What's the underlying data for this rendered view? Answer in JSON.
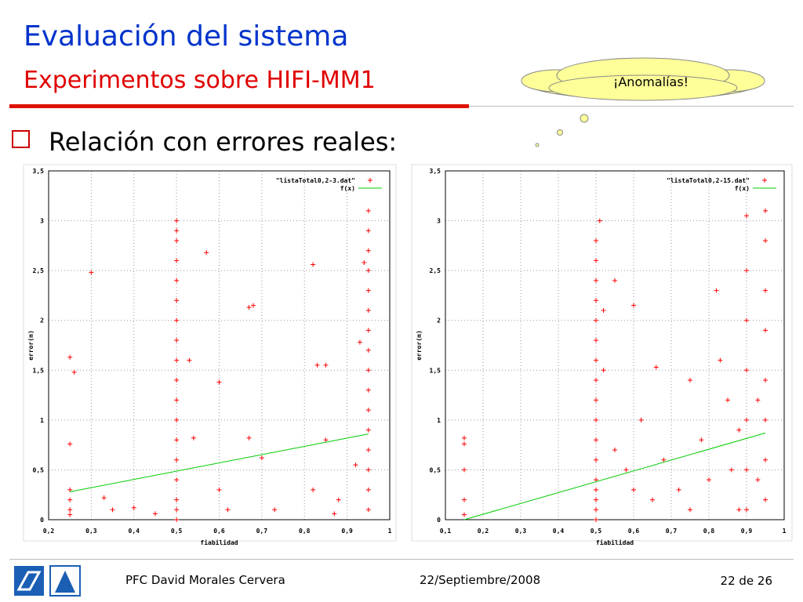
{
  "slide": {
    "title": "Evaluación del sistema",
    "subtitle": "Experimentos sobre HIFI-MM1",
    "callout": "¡Anomalías!",
    "bullet": "Relación con errores reales:",
    "footer": {
      "author": "PFC David Morales Cervera",
      "date": "22/Septiembre/2008",
      "page": "22 de 26"
    }
  },
  "chart_data": [
    {
      "type": "scatter",
      "xlabel": "fiabilidad",
      "ylabel": "error(m)",
      "grid": true,
      "legend": "top-right",
      "xlim": [
        0.2,
        1
      ],
      "ylim": [
        0,
        3.5
      ],
      "xticks": [
        {
          "value": 0.2,
          "label": "0,2"
        },
        {
          "value": 0.3,
          "label": "0,3"
        },
        {
          "value": 0.4,
          "label": "0,4"
        },
        {
          "value": 0.5,
          "label": "0,5"
        },
        {
          "value": 0.6,
          "label": "0,6"
        },
        {
          "value": 0.7,
          "label": "0,7"
        },
        {
          "value": 0.8,
          "label": "0,8"
        },
        {
          "value": 0.9,
          "label": "0,9"
        },
        1
      ],
      "yticks": [
        0,
        {
          "value": 0.5,
          "label": "0,5"
        },
        1,
        {
          "value": 1.5,
          "label": "1,5"
        },
        2,
        {
          "value": 2.5,
          "label": "2,5"
        },
        3,
        {
          "value": 3.5,
          "label": "3,5"
        }
      ],
      "series": [
        {
          "name": "\"listaTotal0,2-3.dat\"",
          "color": "#ff0000",
          "style": "points",
          "x": [
            0.25,
            0.25,
            0.25,
            0.25,
            0.25,
            0.25,
            0.26,
            0.3,
            0.33,
            0.35,
            0.4,
            0.45,
            0.5,
            0.5,
            0.5,
            0.5,
            0.5,
            0.5,
            0.5,
            0.5,
            0.5,
            0.5,
            0.5,
            0.5,
            0.5,
            0.5,
            0.5,
            0.5,
            0.5,
            0.5,
            0.53,
            0.54,
            0.57,
            0.6,
            0.6,
            0.62,
            0.67,
            0.68,
            0.67,
            0.7,
            0.73,
            0.82,
            0.83,
            0.85,
            0.85,
            0.82,
            0.88,
            0.87,
            0.95,
            0.95,
            0.95,
            0.95,
            0.95,
            0.95,
            0.95,
            0.95,
            0.95,
            0.95,
            0.95,
            0.95,
            0.95,
            0.95,
            0.95,
            0.95,
            0.93,
            0.92,
            0.94
          ],
          "values": [
            1.63,
            0.76,
            0.3,
            0.2,
            0.1,
            0.05,
            1.48,
            2.48,
            0.22,
            0.1,
            0.12,
            0.06,
            3.0,
            2.9,
            2.8,
            2.6,
            2.4,
            2.2,
            2.0,
            1.8,
            1.6,
            1.4,
            1.2,
            1.0,
            0.8,
            0.6,
            0.4,
            0.2,
            0.1,
            0.0,
            1.6,
            0.82,
            2.68,
            1.38,
            0.3,
            0.1,
            2.13,
            2.15,
            0.82,
            0.62,
            0.1,
            2.56,
            1.55,
            1.55,
            0.8,
            0.3,
            0.2,
            0.06,
            3.1,
            2.9,
            2.7,
            2.5,
            2.3,
            2.1,
            1.9,
            1.7,
            1.5,
            1.3,
            1.1,
            0.9,
            0.7,
            0.5,
            0.3,
            0.1,
            1.78,
            0.55,
            2.58
          ]
        },
        {
          "name": "f(x)",
          "color": "#00cc00",
          "style": "line",
          "x": [
            0.25,
            0.95
          ],
          "values": [
            0.28,
            0.86
          ]
        }
      ]
    },
    {
      "type": "scatter",
      "xlabel": "fiabilidad",
      "ylabel": "error(m)",
      "grid": true,
      "legend": "top-right",
      "xlim": [
        0.1,
        1
      ],
      "ylim": [
        0,
        3.5
      ],
      "xticks": [
        {
          "value": 0.1,
          "label": "0,1"
        },
        {
          "value": 0.2,
          "label": "0,2"
        },
        {
          "value": 0.3,
          "label": "0,3"
        },
        {
          "value": 0.4,
          "label": "0,4"
        },
        {
          "value": 0.5,
          "label": "0,5"
        },
        {
          "value": 0.6,
          "label": "0,6"
        },
        {
          "value": 0.7,
          "label": "0,7"
        },
        {
          "value": 0.8,
          "label": "0,8"
        },
        {
          "value": 0.9,
          "label": "0,9"
        },
        1
      ],
      "yticks": [
        0,
        {
          "value": 0.5,
          "label": "0,5"
        },
        1,
        {
          "value": 1.5,
          "label": "1,5"
        },
        2,
        {
          "value": 2.5,
          "label": "2,5"
        },
        3,
        {
          "value": 3.5,
          "label": "3,5"
        }
      ],
      "series": [
        {
          "name": "\"listaTotal0,2-15.dat\"",
          "color": "#ff0000",
          "style": "points",
          "x": [
            0.15,
            0.15,
            0.15,
            0.15,
            0.15,
            0.5,
            0.5,
            0.5,
            0.5,
            0.5,
            0.5,
            0.5,
            0.5,
            0.5,
            0.5,
            0.5,
            0.5,
            0.5,
            0.5,
            0.5,
            0.5,
            0.5,
            0.51,
            0.52,
            0.52,
            0.55,
            0.55,
            0.58,
            0.6,
            0.6,
            0.62,
            0.65,
            0.66,
            0.68,
            0.72,
            0.75,
            0.75,
            0.78,
            0.8,
            0.82,
            0.83,
            0.85,
            0.86,
            0.88,
            0.88,
            0.9,
            0.9,
            0.9,
            0.9,
            0.9,
            0.9,
            0.9,
            0.95,
            0.95,
            0.95,
            0.95,
            0.95,
            0.95,
            0.95,
            0.95,
            0.93,
            0.93
          ],
          "values": [
            0.82,
            0.76,
            0.5,
            0.2,
            0.05,
            2.8,
            2.6,
            2.4,
            2.2,
            2.0,
            1.8,
            1.6,
            1.4,
            1.2,
            1.0,
            0.8,
            0.6,
            0.4,
            0.3,
            0.2,
            0.1,
            0.0,
            3.0,
            2.1,
            1.5,
            2.4,
            0.7,
            0.5,
            2.15,
            0.3,
            1.0,
            0.2,
            1.53,
            0.6,
            0.3,
            1.4,
            0.1,
            0.8,
            0.4,
            2.3,
            1.6,
            1.2,
            0.5,
            0.9,
            0.1,
            3.05,
            2.5,
            2.0,
            1.5,
            1.0,
            0.5,
            0.1,
            3.1,
            2.8,
            2.3,
            1.9,
            1.4,
            1.0,
            0.6,
            0.2,
            1.2,
            0.4
          ]
        },
        {
          "name": "f(x)",
          "color": "#00cc00",
          "style": "line",
          "x": [
            0.15,
            0.95
          ],
          "values": [
            0.0,
            0.87
          ]
        }
      ]
    }
  ]
}
